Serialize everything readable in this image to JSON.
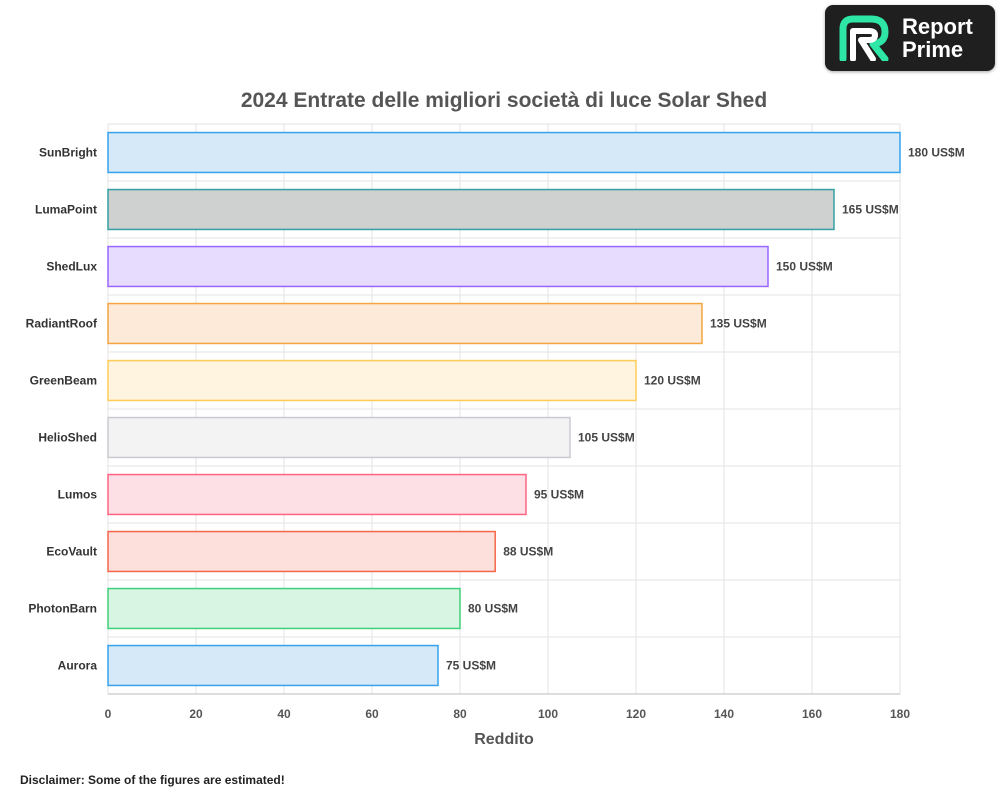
{
  "logo": {
    "line1": "Report",
    "line2": "Prime"
  },
  "chart_data": {
    "type": "bar",
    "orientation": "horizontal",
    "title": "2024 Entrate delle migliori società di luce Solar Shed",
    "xlabel": "Reddito",
    "ylabel": "",
    "xlim": [
      0,
      180
    ],
    "x_ticks": [
      0,
      20,
      40,
      60,
      80,
      100,
      120,
      140,
      160,
      180
    ],
    "grid": true,
    "categories": [
      "SunBright",
      "LumaPoint",
      "ShedLux",
      "RadiantRoof",
      "GreenBeam",
      "HelioShed",
      "Lumos",
      "EcoVault",
      "PhotonBarn",
      "Aurora"
    ],
    "values": [
      180,
      165,
      150,
      135,
      120,
      105,
      95,
      88,
      80,
      75
    ],
    "value_labels": [
      "180 US$M",
      "165 US$M",
      "150 US$M",
      "135 US$M",
      "120 US$M",
      "105 US$M",
      "95 US$M",
      "88 US$M",
      "80 US$M",
      "75 US$M"
    ],
    "colors": [
      {
        "fill": "#d6e9f9",
        "stroke": "#36a2eb"
      },
      {
        "fill": "#cfd1d0",
        "stroke": "#34a0a4"
      },
      {
        "fill": "#e8dcfe",
        "stroke": "#9966ff"
      },
      {
        "fill": "#feead9",
        "stroke": "#f4a442"
      },
      {
        "fill": "#fff4df",
        "stroke": "#ffcd56"
      },
      {
        "fill": "#f3f3f3",
        "stroke": "#c9cbcf"
      },
      {
        "fill": "#fde0e6",
        "stroke": "#ff6384"
      },
      {
        "fill": "#fde0dc",
        "stroke": "#f4664a"
      },
      {
        "fill": "#d8f5e4",
        "stroke": "#3fcf7a"
      },
      {
        "fill": "#d6e9f9",
        "stroke": "#36a2eb"
      }
    ]
  },
  "disclaimer": "Disclaimer: Some of the figures are estimated!"
}
